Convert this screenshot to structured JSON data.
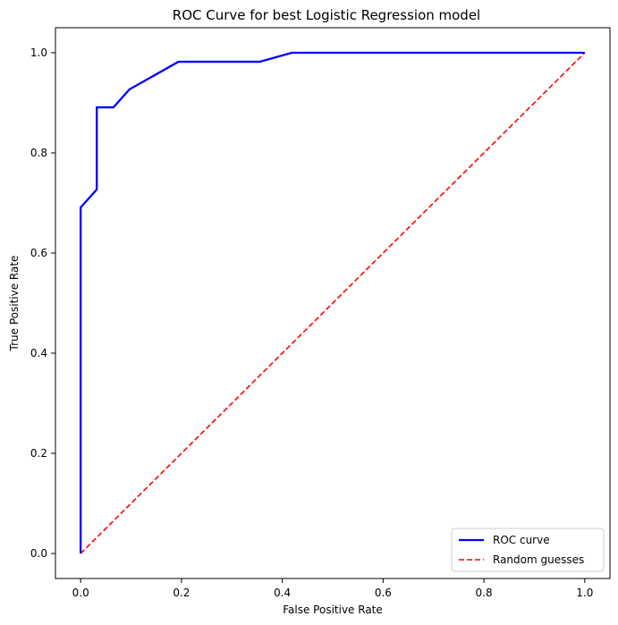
{
  "chart_data": {
    "type": "line",
    "title": "ROC Curve for best Logistic Regression model",
    "xlabel": "False Positive Rate",
    "ylabel": "True Positive Rate",
    "xlim": [
      -0.05,
      1.05
    ],
    "ylim": [
      -0.05,
      1.05
    ],
    "xticks": [
      0.0,
      0.2,
      0.4,
      0.6,
      0.8,
      1.0
    ],
    "yticks": [
      0.0,
      0.2,
      0.4,
      0.6,
      0.8,
      1.0
    ],
    "xtick_labels": [
      "0.0",
      "0.2",
      "0.4",
      "0.6",
      "0.8",
      "1.0"
    ],
    "ytick_labels": [
      "0.0",
      "0.2",
      "0.4",
      "0.6",
      "0.8",
      "1.0"
    ],
    "grid": false,
    "legend_position": "bottom-right",
    "series": [
      {
        "name": "ROC curve",
        "color": "#0000ff",
        "style": "solid",
        "x": [
          0.0,
          0.0,
          0.032,
          0.032,
          0.065,
          0.065,
          0.097,
          0.194,
          0.355,
          0.419,
          1.0
        ],
        "y": [
          0.0,
          0.691,
          0.727,
          0.891,
          0.891,
          0.891,
          0.927,
          0.982,
          0.982,
          1.0,
          1.0
        ]
      },
      {
        "name": "Random guesses",
        "color": "#ff0000",
        "style": "dashed",
        "x": [
          0.0,
          1.0
        ],
        "y": [
          0.0,
          1.0
        ]
      }
    ]
  }
}
